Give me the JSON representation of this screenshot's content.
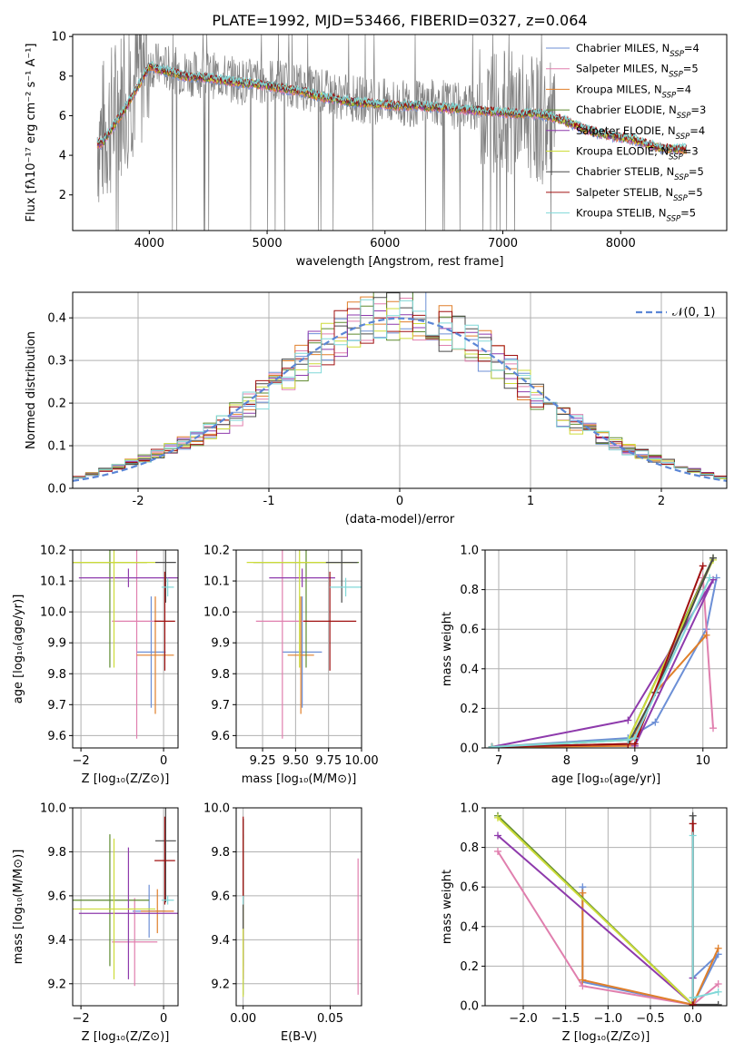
{
  "colors": [
    "#6c8fd6",
    "#e07fae",
    "#e07f2a",
    "#5e8a2f",
    "#8e3aac",
    "#cddc39",
    "#4a4a4a",
    "#a01010",
    "#80d8d8"
  ],
  "chart_data": [
    {
      "id": "spectrum",
      "type": "line",
      "title": "PLATE=1992, MJD=53466, FIBERID=0327, z=0.064",
      "xlabel": "wavelength [Angstrom, rest frame]",
      "ylabel": "Flux [fλ10⁻¹⁷ erg cm⁻² s⁻¹ A⁻¹]",
      "xlim": [
        3350,
        8900
      ],
      "ylim": [
        0.2,
        10.1
      ],
      "xticks": [
        4000,
        5000,
        6000,
        7000,
        8000
      ],
      "yticks": [
        2,
        4,
        6,
        8,
        10
      ],
      "data_trace": {
        "name": "data",
        "color": "#808080",
        "x": [
          3600,
          3700,
          3800,
          3900,
          4000,
          4100,
          4200,
          4400,
          4600,
          4800,
          5000,
          5200,
          5400,
          5600,
          5800,
          6000,
          6200,
          6400,
          6600,
          6800,
          7000,
          7200,
          7400
        ],
        "y": [
          5.0,
          6.0,
          7.2,
          8.0,
          8.6,
          8.5,
          8.3,
          8.1,
          8.0,
          7.7,
          7.8,
          7.6,
          7.3,
          7.0,
          6.8,
          6.7,
          6.6,
          6.7,
          6.5,
          6.4,
          6.2,
          6.0,
          5.5
        ]
      },
      "models": {
        "name": "models",
        "x": [
          3600,
          3800,
          4000,
          4100,
          4300,
          4500,
          4700,
          4900,
          5100,
          5300,
          5500,
          5700,
          5900,
          6100,
          6300,
          6500,
          6700,
          6900,
          7100,
          7300,
          7500,
          7700,
          7900,
          8100,
          8300,
          8500
        ],
        "y": [
          4.6,
          6.4,
          8.5,
          8.3,
          8.0,
          7.9,
          7.7,
          7.6,
          7.4,
          7.2,
          6.9,
          6.7,
          6.6,
          6.5,
          6.5,
          6.4,
          6.3,
          6.2,
          6.1,
          6.1,
          5.8,
          5.3,
          5.0,
          4.8,
          4.4,
          4.3
        ]
      },
      "legend": [
        "Chabrier MILES, N_{SSP}=4",
        "Salpeter MILES, N_{SSP}=5",
        "Kroupa MILES, N_{SSP}=4",
        "Chabrier ELODIE, N_{SSP}=3",
        "Salpeter ELODIE, N_{SSP}=4",
        "Kroupa ELODIE, N_{SSP}=3",
        "Chabrier STELIB, N_{SSP}=5",
        "Salpeter STELIB, N_{SSP}=5",
        "Kroupa STELIB, N_{SSP}=5"
      ],
      "legend_position": "right"
    },
    {
      "id": "residuals",
      "type": "step",
      "xlabel": "(data-model)/error",
      "ylabel": "Normed distribution",
      "xlim": [
        -2.5,
        2.5
      ],
      "ylim": [
        0,
        0.46
      ],
      "xticks": [
        -2,
        -1,
        0,
        1,
        2
      ],
      "yticks": [
        0.0,
        0.1,
        0.2,
        0.3,
        0.4
      ],
      "gaussian_label": "𝒩(0, 1)",
      "legend_position": "top-right",
      "grid": true
    },
    {
      "id": "age_vs_Z",
      "type": "errorbar",
      "xlabel": "Z [log₁₀(Z/Z⊙)]",
      "ylabel": "age  [log₁₀(age/yr)]",
      "xlim": [
        -2.2,
        0.35
      ],
      "ylim": [
        9.56,
        10.2
      ],
      "xticks": [
        -2,
        0
      ],
      "xtick_labels": [
        "−2",
        "0"
      ],
      "yticks": [
        9.6,
        9.7,
        9.8,
        9.9,
        10.0,
        10.1,
        10.2
      ],
      "ytick_labels": [
        "9.6",
        "9.7",
        "9.8",
        "9.9",
        "10.0",
        "10.1",
        "10.2"
      ],
      "points": [
        {
          "x": -0.3,
          "xerr": 0.35,
          "y": 9.87,
          "yerr": 0.18
        },
        {
          "x": -0.65,
          "xerr": 0.6,
          "y": 9.97,
          "yerr": 0.38
        },
        {
          "x": -0.2,
          "xerr": 0.45,
          "y": 9.86,
          "yerr": 0.19
        },
        {
          "x": -1.3,
          "xerr": 0.9,
          "y": 10.16,
          "yerr": 0.34
        },
        {
          "x": -0.85,
          "xerr": 1.2,
          "y": 10.11,
          "yerr": 0.03
        },
        {
          "x": -1.2,
          "xerr": 1.0,
          "y": 10.16,
          "yerr": 0.34
        },
        {
          "x": 0.05,
          "xerr": 0.25,
          "y": 10.16,
          "yerr": 0.13
        },
        {
          "x": 0.03,
          "xerr": 0.25,
          "y": 9.97,
          "yerr": 0.16
        },
        {
          "x": 0.1,
          "xerr": 0.15,
          "y": 10.08,
          "yerr": 0.03
        }
      ]
    },
    {
      "id": "age_vs_mass",
      "type": "errorbar",
      "xlabel": "mass [log₁₀(M/M⊙)]",
      "ylabel": "",
      "xlim": [
        9.05,
        10.0
      ],
      "ylim": [
        9.56,
        10.2
      ],
      "xticks": [
        9.25,
        9.5,
        9.75,
        10.0
      ],
      "xtick_labels": [
        "9.25",
        "9.50",
        "9.75",
        "10.00"
      ],
      "yticks": [
        9.6,
        9.7,
        9.8,
        9.9,
        10.0,
        10.1,
        10.2
      ],
      "ytick_labels": [
        "9.6",
        "9.7",
        "9.8",
        "9.9",
        "10.0",
        "10.1",
        "10.2"
      ],
      "points": [
        {
          "x": 9.55,
          "xerr": 0.15,
          "y": 9.87,
          "yerr": 0.18
        },
        {
          "x": 9.4,
          "xerr": 0.2,
          "y": 9.97,
          "yerr": 0.38
        },
        {
          "x": 9.54,
          "xerr": 0.1,
          "y": 9.86,
          "yerr": 0.19
        },
        {
          "x": 9.58,
          "xerr": 0.4,
          "y": 10.16,
          "yerr": 0.34
        },
        {
          "x": 9.55,
          "xerr": 0.25,
          "y": 10.11,
          "yerr": 0.03
        },
        {
          "x": 9.53,
          "xerr": 0.4,
          "y": 10.16,
          "yerr": 0.34
        },
        {
          "x": 9.85,
          "xerr": 0.12,
          "y": 10.16,
          "yerr": 0.13
        },
        {
          "x": 9.76,
          "xerr": 0.2,
          "y": 9.97,
          "yerr": 0.16
        },
        {
          "x": 9.88,
          "xerr": 0.12,
          "y": 10.08,
          "yerr": 0.03
        }
      ]
    },
    {
      "id": "mass_weight_vs_age",
      "type": "line",
      "xlabel": "age  [log₁₀(age/yr)]",
      "ylabel": "mass weight",
      "xlim": [
        6.8,
        10.35
      ],
      "ylim": [
        0,
        1.0
      ],
      "xticks": [
        7,
        8,
        9,
        10
      ],
      "xtick_labels": [
        "7",
        "8",
        "9",
        "10"
      ],
      "yticks": [
        0,
        0.2,
        0.4,
        0.6,
        0.8,
        1.0
      ],
      "ytick_labels": [
        "0.0",
        "0.2",
        "0.4",
        "0.6",
        "0.8",
        "1.0"
      ],
      "series": [
        {
          "x": [
            6.9,
            8.9,
            9.3,
            10.05,
            10.2
          ],
          "y": [
            0.005,
            0.05,
            0.13,
            0.6,
            0.86
          ]
        },
        {
          "x": [
            6.9,
            8.9,
            9.0,
            10.0,
            10.15
          ],
          "y": [
            0.005,
            0.02,
            0.05,
            0.86,
            0.1
          ]
        },
        {
          "x": [
            6.9,
            8.9,
            9.3,
            10.05
          ],
          "y": [
            0.005,
            0.01,
            0.28,
            0.57
          ]
        },
        {
          "x": [
            6.9,
            8.9,
            10.15
          ],
          "y": [
            0.005,
            0.04,
            0.96
          ]
        },
        {
          "x": [
            6.9,
            8.9,
            10.15,
            9.0
          ],
          "y": [
            0.005,
            0.14,
            0.85,
            0.01
          ]
        },
        {
          "x": [
            6.9,
            8.9,
            10.15
          ],
          "y": [
            0.005,
            0.04,
            0.95
          ]
        },
        {
          "x": [
            6.9,
            8.9,
            9.3,
            10.15
          ],
          "y": [
            0.005,
            0.02,
            0.28,
            0.96
          ]
        },
        {
          "x": [
            6.9,
            8.9,
            9.0,
            10.0
          ],
          "y": [
            0.005,
            0.02,
            0.02,
            0.92
          ]
        },
        {
          "x": [
            6.9,
            8.9,
            9.0,
            10.1
          ],
          "y": [
            0.005,
            0.04,
            0.05,
            0.86
          ]
        }
      ]
    },
    {
      "id": "mass_vs_Z",
      "type": "errorbar",
      "xlabel": "Z [log₁₀(Z/Z⊙)]",
      "ylabel": "mass [log₁₀(M/M⊙)]",
      "xlim": [
        -2.2,
        0.35
      ],
      "ylim": [
        9.1,
        10.0
      ],
      "xticks": [
        -2,
        0
      ],
      "xtick_labels": [
        "−2",
        "0"
      ],
      "yticks": [
        9.2,
        9.4,
        9.6,
        9.8,
        10.0
      ],
      "ytick_labels": [
        "9.2",
        "9.4",
        "9.6",
        "9.8",
        "10.0"
      ],
      "points": [
        {
          "x": -0.35,
          "xerr": 0.4,
          "y": 9.53,
          "yerr": 0.12
        },
        {
          "x": -0.7,
          "xerr": 0.55,
          "y": 9.39,
          "yerr": 0.2
        },
        {
          "x": -0.15,
          "xerr": 0.4,
          "y": 9.53,
          "yerr": 0.1
        },
        {
          "x": -1.3,
          "xerr": 0.95,
          "y": 9.58,
          "yerr": 0.3
        },
        {
          "x": -0.85,
          "xerr": 1.2,
          "y": 9.52,
          "yerr": 0.3
        },
        {
          "x": -1.2,
          "xerr": 1.0,
          "y": 9.54,
          "yerr": 0.32
        },
        {
          "x": 0.05,
          "xerr": 0.25,
          "y": 9.85,
          "yerr": 0.28
        },
        {
          "x": 0.03,
          "xerr": 0.25,
          "y": 9.76,
          "yerr": 0.2
        },
        {
          "x": 0.1,
          "xerr": 0.15,
          "y": 9.58,
          "yerr": 0.02
        }
      ]
    },
    {
      "id": "mass_vs_EBV",
      "type": "errorbar",
      "xlabel": "E(B-V)",
      "ylabel": "",
      "xlim": [
        -0.004,
        0.068
      ],
      "ylim": [
        9.1,
        10.0
      ],
      "xticks": [
        0.0,
        0.05
      ],
      "xtick_labels": [
        "0.00",
        "0.05"
      ],
      "yticks": [
        9.2,
        9.4,
        9.6,
        9.8,
        10.0
      ],
      "ytick_labels": [
        "9.2",
        "9.4",
        "9.6",
        "9.8",
        "10.0"
      ],
      "points": [
        {
          "x": 0.0,
          "xerr": 0,
          "y": 9.55,
          "yerr": 0.4
        },
        {
          "x": 0.066,
          "xerr": 0,
          "y": 9.46,
          "yerr": 0.31
        },
        {
          "x": 0.0,
          "xerr": 0,
          "y": 9.6,
          "yerr": 0.35
        },
        {
          "x": 0.0,
          "xerr": 0,
          "y": 9.58,
          "yerr": 0.3
        },
        {
          "x": 0.0,
          "xerr": 0,
          "y": 9.52,
          "yerr": 0.3
        },
        {
          "x": 0.0,
          "xerr": 0,
          "y": 9.5,
          "yerr": 0.36
        },
        {
          "x": 0.0,
          "xerr": 0,
          "y": 9.7,
          "yerr": 0.25
        },
        {
          "x": 0.0,
          "xerr": 0,
          "y": 9.76,
          "yerr": 0.2
        },
        {
          "x": 0.0,
          "xerr": 0,
          "y": 9.58,
          "yerr": 0.02
        }
      ]
    },
    {
      "id": "mass_weight_vs_Z",
      "type": "line",
      "xlabel": "Z [log₁₀(Z/Z⊙)]",
      "ylabel": "mass weight",
      "xlim": [
        -2.45,
        0.4
      ],
      "ylim": [
        0,
        1.0
      ],
      "xticks": [
        -2.0,
        -1.5,
        -1.0,
        -0.5,
        0.0
      ],
      "xtick_labels": [
        "−2.0",
        "−1.5",
        "−1.0",
        "−0.5",
        "0.0"
      ],
      "yticks": [
        0,
        0.2,
        0.4,
        0.6,
        0.8,
        1.0
      ],
      "ytick_labels": [
        "0.0",
        "0.2",
        "0.4",
        "0.6",
        "0.8",
        "1.0"
      ],
      "series": [
        {
          "x": [
            -1.3,
            -1.3,
            0.0,
            0.3,
            0.0
          ],
          "y": [
            0.6,
            0.12,
            0.005,
            0.26,
            0.14
          ]
        },
        {
          "x": [
            -2.3,
            -1.3,
            0.0,
            0.3
          ],
          "y": [
            0.78,
            0.1,
            0.005,
            0.11
          ]
        },
        {
          "x": [
            -1.3,
            -1.3,
            0.0,
            0.3
          ],
          "y": [
            0.57,
            0.13,
            0.005,
            0.29
          ]
        },
        {
          "x": [
            -2.3,
            0.0,
            0.0
          ],
          "y": [
            0.96,
            0.005,
            0.04
          ]
        },
        {
          "x": [
            -2.3,
            0.0,
            0.0
          ],
          "y": [
            0.86,
            0.005,
            0.14
          ]
        },
        {
          "x": [
            -2.3,
            0.0
          ],
          "y": [
            0.95,
            0.005
          ]
        },
        {
          "x": [
            0.0,
            0.0,
            0.3
          ],
          "y": [
            0.96,
            0.005,
            0.005
          ]
        },
        {
          "x": [
            0.0,
            0.0
          ],
          "y": [
            0.92,
            0.005
          ]
        },
        {
          "x": [
            0.0,
            0.0,
            0.3
          ],
          "y": [
            0.86,
            0.04,
            0.07
          ]
        }
      ]
    }
  ]
}
